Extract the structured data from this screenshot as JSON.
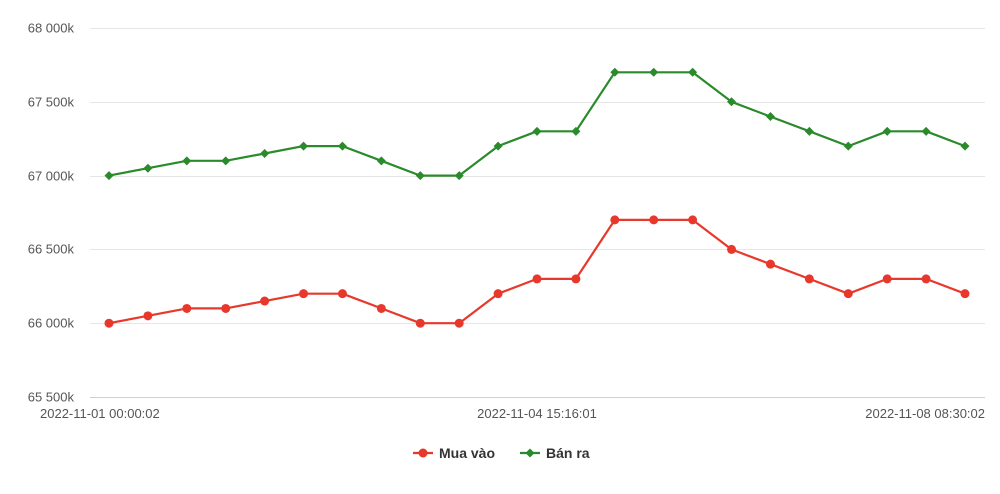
{
  "chart_data": {
    "type": "line",
    "title": "",
    "xlabel": "",
    "ylabel": "",
    "ylim": [
      65500,
      68000
    ],
    "y_ticks": [
      {
        "value": 68000,
        "label": "68 000k"
      },
      {
        "value": 67500,
        "label": "67 500k"
      },
      {
        "value": 67000,
        "label": "67 000k"
      },
      {
        "value": 66500,
        "label": "66 500k"
      },
      {
        "value": 66000,
        "label": "66 000k"
      },
      {
        "value": 65500,
        "label": "65 500k"
      }
    ],
    "x_tick_labels": [
      {
        "index": 0,
        "label": "2022-11-01 00:00:02"
      },
      {
        "index": 11,
        "label": "2022-11-04 15:16:01"
      },
      {
        "index": 22,
        "label": "2022-11-08 08:30:02"
      }
    ],
    "point_count": 23,
    "grid": true,
    "legend_position": "bottom-center",
    "series": [
      {
        "name": "Mua vào",
        "color": "#e8382c",
        "marker": "circle",
        "values": [
          66000,
          66050,
          66100,
          66100,
          66150,
          66200,
          66200,
          66100,
          66000,
          66000,
          66200,
          66300,
          66300,
          66700,
          66700,
          66700,
          66500,
          66400,
          66300,
          66200,
          66300,
          66300,
          66200
        ]
      },
      {
        "name": "Bán ra",
        "color": "#2b8a2b",
        "marker": "diamond",
        "values": [
          67000,
          67050,
          67100,
          67100,
          67150,
          67200,
          67200,
          67100,
          67000,
          67000,
          67200,
          67300,
          67300,
          67700,
          67700,
          67700,
          67500,
          67400,
          67300,
          67200,
          67300,
          67300,
          67200
        ]
      }
    ]
  }
}
